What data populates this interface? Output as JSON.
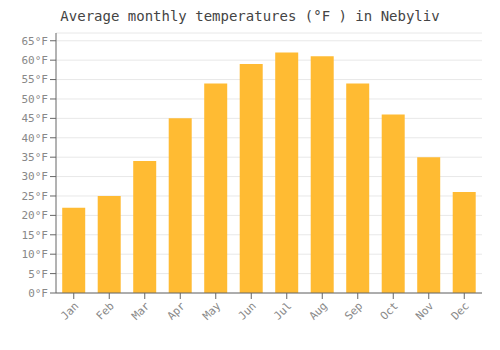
{
  "chart_data": {
    "type": "bar",
    "title": "Average monthly temperatures (°F ) in Nebyliv",
    "categories": [
      "Jan",
      "Feb",
      "Mar",
      "Apr",
      "May",
      "Jun",
      "Jul",
      "Aug",
      "Sep",
      "Oct",
      "Nov",
      "Dec"
    ],
    "values": [
      22,
      25,
      34,
      45,
      54,
      59,
      62,
      61,
      54,
      46,
      35,
      26
    ],
    "color": "#FFBB33",
    "ylim": [
      0,
      67
    ],
    "yticks": [
      {
        "value": 0,
        "label": "0°F"
      },
      {
        "value": 5,
        "label": "5°F"
      },
      {
        "value": 10,
        "label": "10°F"
      },
      {
        "value": 15,
        "label": "15°F"
      },
      {
        "value": 20,
        "label": "20°F"
      },
      {
        "value": 25,
        "label": "25°F"
      },
      {
        "value": 30,
        "label": "30°F"
      },
      {
        "value": 35,
        "label": "35°F"
      },
      {
        "value": 40,
        "label": "40°F"
      },
      {
        "value": 45,
        "label": "45°F"
      },
      {
        "value": 50,
        "label": "50°F"
      },
      {
        "value": 55,
        "label": "55°F"
      },
      {
        "value": 60,
        "label": "60°F"
      },
      {
        "value": 65,
        "label": "65°F"
      }
    ],
    "grid": true
  }
}
